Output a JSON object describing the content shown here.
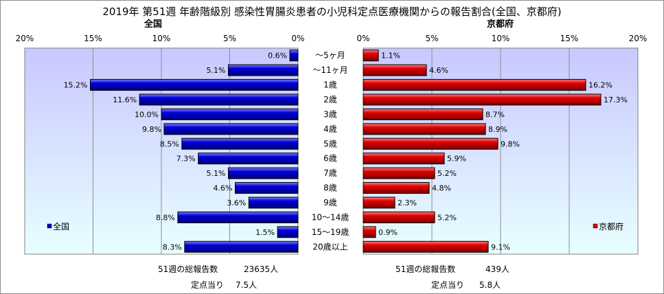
{
  "title": "2019年 第51週 年齢階級別 感染性胃腸炎患者の小児科定点医療機関からの報告割合(全国、京都府)",
  "colors": {
    "japan": "#0000cc",
    "kyoto": "#dd0000",
    "plot_top": "#c8c8ff",
    "plot_bottom": "#e8ffff"
  },
  "chart_data": [
    {
      "type": "bar",
      "title": "全国",
      "orientation": "horizontal-reversed",
      "xlim": [
        0,
        20
      ],
      "ticks": [
        "20%",
        "15%",
        "10%",
        "5%",
        "0%"
      ],
      "legend": "全国",
      "legend_position": "bottom-left",
      "categories": [
        "～5ヶ月",
        "～11ヶ月",
        "1歳",
        "2歳",
        "3歳",
        "4歳",
        "5歳",
        "6歳",
        "7歳",
        "8歳",
        "9歳",
        "10～14歳",
        "15～19歳",
        "20歳以上"
      ],
      "values": [
        0.6,
        5.1,
        15.2,
        11.6,
        10.0,
        9.8,
        8.5,
        7.3,
        5.1,
        4.6,
        3.6,
        8.8,
        1.5,
        8.3
      ],
      "labels": [
        "0.6%",
        "5.1%",
        "15.2%",
        "11.6%",
        "10.0%",
        "9.8%",
        "8.5%",
        "7.3%",
        "5.1%",
        "4.6%",
        "3.6%",
        "8.8%",
        "1.5%",
        "8.3%"
      ],
      "grid": true
    },
    {
      "type": "bar",
      "title": "京都府",
      "orientation": "horizontal",
      "xlim": [
        0,
        20
      ],
      "ticks": [
        "0%",
        "5%",
        "10%",
        "15%",
        "20%"
      ],
      "legend": "京都府",
      "legend_position": "bottom-right",
      "categories": [
        "～5ヶ月",
        "～11ヶ月",
        "1歳",
        "2歳",
        "3歳",
        "4歳",
        "5歳",
        "6歳",
        "7歳",
        "8歳",
        "9歳",
        "10～14歳",
        "15～19歳",
        "20歳以上"
      ],
      "values": [
        1.1,
        4.6,
        16.2,
        17.3,
        8.7,
        8.9,
        9.8,
        5.9,
        5.2,
        4.8,
        2.3,
        5.2,
        0.9,
        9.1
      ],
      "labels": [
        "1.1%",
        "4.6%",
        "16.2%",
        "17.3%",
        "8.7%",
        "8.9%",
        "9.8%",
        "5.9%",
        "5.2%",
        "4.8%",
        "2.3%",
        "5.2%",
        "0.9%",
        "9.1%"
      ],
      "grid": true
    }
  ],
  "footer": {
    "japan_total_label": "51週の総報告数",
    "japan_total_value": "23635人",
    "japan_per_label": "定点当り",
    "japan_per_value": "7.5人",
    "kyoto_total_label": "51週の総報告数",
    "kyoto_total_value": "439人",
    "kyoto_per_label": "定点当り",
    "kyoto_per_value": "5.8人"
  }
}
